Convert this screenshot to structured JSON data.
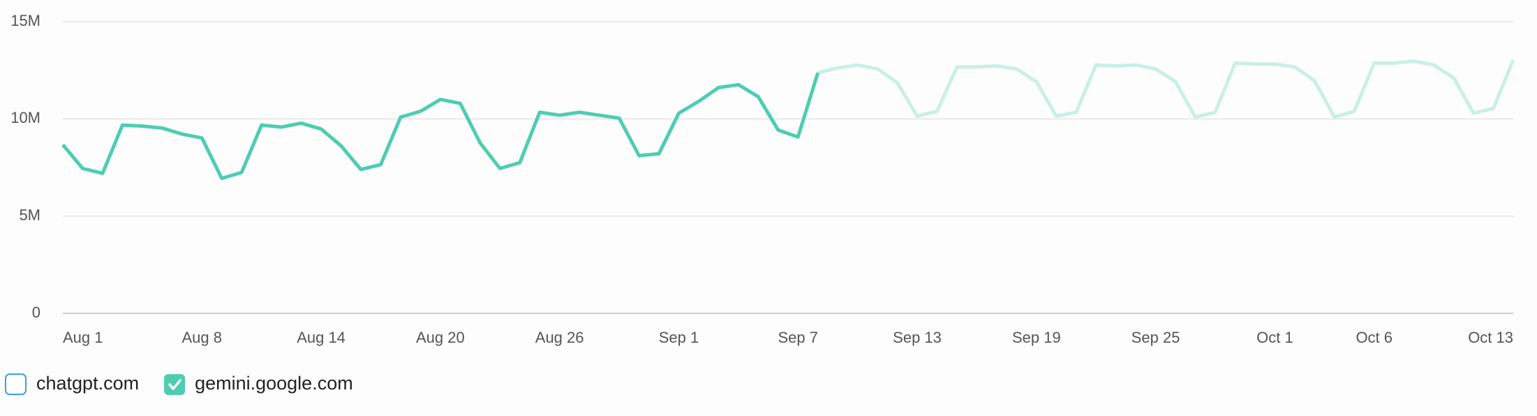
{
  "chart_data": {
    "type": "line",
    "categories": [
      "Aug 1",
      null,
      null,
      null,
      null,
      null,
      null,
      "Aug 8",
      null,
      null,
      null,
      null,
      null,
      "Aug 14",
      null,
      null,
      null,
      null,
      null,
      "Aug 20",
      null,
      null,
      null,
      null,
      null,
      "Aug 26",
      null,
      null,
      null,
      null,
      null,
      "Sep 1",
      null,
      null,
      null,
      null,
      null,
      "Sep 7",
      null,
      null,
      null,
      null,
      null,
      "Sep 13",
      null,
      null,
      null,
      null,
      null,
      "Sep 19",
      null,
      null,
      null,
      null,
      null,
      "Sep 25",
      null,
      null,
      null,
      null,
      null,
      "Oct 1",
      null,
      null,
      null,
      null,
      "Oct 6",
      null,
      null,
      null,
      null,
      null,
      null,
      "Oct 13"
    ],
    "series": [
      {
        "name": "chatgpt.com",
        "visible": false,
        "color": "#3b9ee8"
      },
      {
        "name": "gemini.google.com",
        "visible": true,
        "color": "#4ecdb0",
        "faded_color": "#c9efe6",
        "solid_until_index": 38,
        "values": [
          8670000,
          7450000,
          7200000,
          9680000,
          9630000,
          9530000,
          9220000,
          9020000,
          6940000,
          7250000,
          9680000,
          9580000,
          9780000,
          9480000,
          8620000,
          7400000,
          7650000,
          10090000,
          10390000,
          11000000,
          10800000,
          8770000,
          7450000,
          7750000,
          10340000,
          10190000,
          10340000,
          10190000,
          10040000,
          8110000,
          8210000,
          10290000,
          10900000,
          11610000,
          11760000,
          11140000,
          9430000,
          9070000,
          12370000,
          12620000,
          12770000,
          12570000,
          11860000,
          10140000,
          10390000,
          12670000,
          12670000,
          12720000,
          12570000,
          11910000,
          10140000,
          10340000,
          12770000,
          12720000,
          12770000,
          12570000,
          11910000,
          10090000,
          10340000,
          12870000,
          12820000,
          12820000,
          12670000,
          11960000,
          10090000,
          10390000,
          12870000,
          12870000,
          12970000,
          12770000,
          12110000,
          10290000,
          10540000,
          13030000
        ]
      }
    ],
    "ylim": [
      0,
      15000000
    ],
    "yticks": [
      0,
      {
        "value": 5000000,
        "label": "5M"
      },
      {
        "value": 10000000,
        "label": "10M"
      },
      {
        "value": 15000000,
        "label": "15M"
      }
    ],
    "grid": true
  }
}
